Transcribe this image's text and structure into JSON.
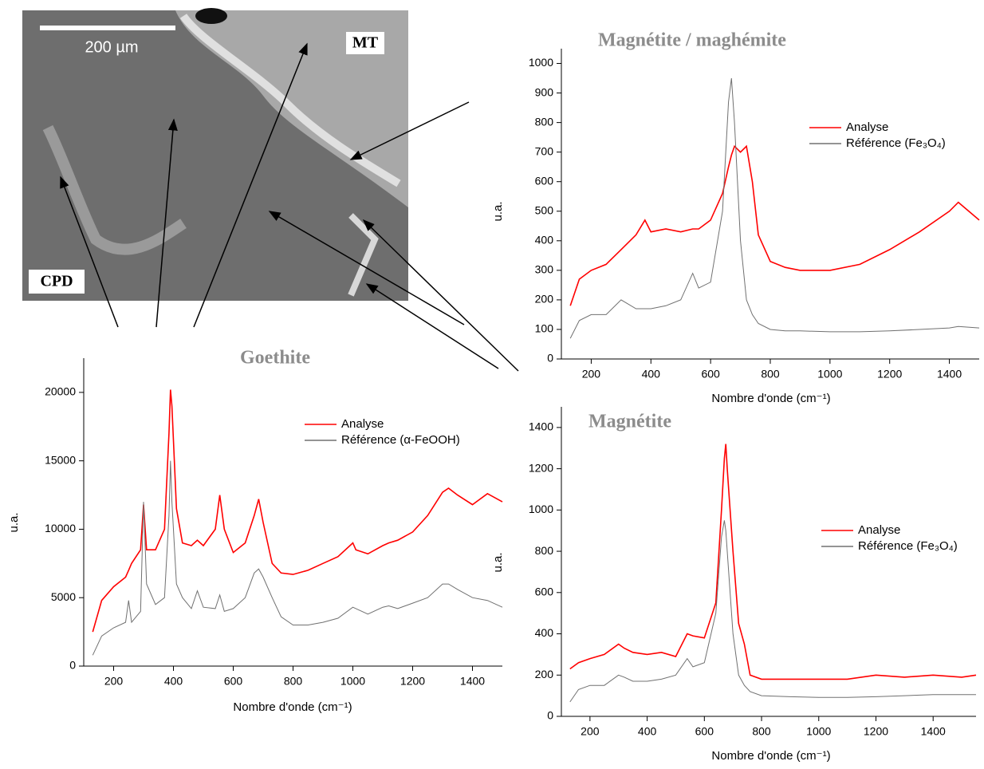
{
  "image": {
    "scale_bar": "200 µm",
    "labels": [
      "MT",
      "CPD"
    ]
  },
  "chart_data": [
    {
      "type": "line",
      "title": "Goethite",
      "xlabel": "Nombre d'onde (cm⁻¹)",
      "ylabel": "u.a.",
      "xlim": [
        100,
        1500
      ],
      "ylim": [
        0,
        22500
      ],
      "xticks": [
        200,
        400,
        600,
        800,
        1000,
        1200,
        1400
      ],
      "yticks": [
        0,
        5000,
        10000,
        15000,
        20000
      ],
      "x": [
        130,
        160,
        200,
        240,
        250,
        260,
        290,
        300,
        310,
        340,
        370,
        385,
        390,
        395,
        410,
        430,
        460,
        480,
        500,
        540,
        555,
        570,
        600,
        640,
        670,
        685,
        700,
        730,
        760,
        800,
        850,
        900,
        950,
        1000,
        1010,
        1050,
        1100,
        1120,
        1150,
        1200,
        1250,
        1300,
        1320,
        1350,
        1400,
        1450,
        1500
      ],
      "series": [
        {
          "name": "Analyse",
          "color": "#ff0000",
          "values": [
            2500,
            4800,
            5800,
            6500,
            7000,
            7500,
            8500,
            11800,
            8500,
            8500,
            10000,
            17000,
            20200,
            19000,
            11500,
            9000,
            8800,
            9200,
            8800,
            10000,
            12500,
            10000,
            8300,
            9000,
            11000,
            12200,
            10500,
            7500,
            6800,
            6700,
            7000,
            7500,
            8000,
            9000,
            8500,
            8200,
            8800,
            9000,
            9200,
            9800,
            11000,
            12700,
            13000,
            12500,
            11800,
            12600,
            12000
          ]
        },
        {
          "name": "Référence (α-FeOOH)",
          "color": "#707070",
          "values": [
            800,
            2200,
            2800,
            3200,
            4800,
            3200,
            4000,
            12000,
            6000,
            4500,
            5000,
            11000,
            15000,
            12000,
            6000,
            5000,
            4200,
            5500,
            4300,
            4200,
            5200,
            4000,
            4200,
            5000,
            6800,
            7100,
            6500,
            5000,
            3600,
            3000,
            3000,
            3200,
            3500,
            4300,
            4200,
            3800,
            4300,
            4400,
            4200,
            4600,
            5000,
            6000,
            6000,
            5600,
            5000,
            4800,
            4300
          ]
        }
      ]
    },
    {
      "type": "line",
      "title": "Magnétite / maghémite",
      "xlabel": "Nombre d'onde (cm⁻¹)",
      "ylabel": "u.a.",
      "xlim": [
        100,
        1500
      ],
      "ylim": [
        0,
        1050
      ],
      "xticks": [
        200,
        400,
        600,
        800,
        1000,
        1200,
        1400
      ],
      "yticks": [
        0,
        100,
        200,
        300,
        400,
        500,
        600,
        700,
        800,
        900,
        1000
      ],
      "x": [
        130,
        160,
        200,
        250,
        300,
        350,
        380,
        400,
        450,
        500,
        540,
        560,
        600,
        640,
        660,
        670,
        680,
        700,
        720,
        740,
        760,
        800,
        850,
        900,
        1000,
        1100,
        1200,
        1300,
        1400,
        1430,
        1500
      ],
      "series": [
        {
          "name": "Analyse",
          "color": "#ff0000",
          "values": [
            180,
            270,
            300,
            320,
            370,
            420,
            470,
            430,
            440,
            430,
            440,
            440,
            470,
            560,
            650,
            690,
            720,
            700,
            720,
            600,
            420,
            330,
            310,
            300,
            300,
            320,
            370,
            430,
            500,
            530,
            470
          ]
        },
        {
          "name": "Référence (Fe₃O₄)",
          "color": "#707070",
          "values": [
            70,
            130,
            150,
            150,
            200,
            170,
            170,
            170,
            180,
            200,
            290,
            240,
            260,
            500,
            870,
            950,
            800,
            400,
            200,
            150,
            120,
            100,
            95,
            95,
            92,
            92,
            95,
            100,
            105,
            110,
            105
          ]
        }
      ]
    },
    {
      "type": "line",
      "title": "Magnétite",
      "xlabel": "Nombre d'onde (cm⁻¹)",
      "ylabel": "u.a.",
      "xlim": [
        100,
        1550
      ],
      "ylim": [
        0,
        1500
      ],
      "xticks": [
        200,
        400,
        600,
        800,
        1000,
        1200,
        1400
      ],
      "yticks": [
        0,
        200,
        400,
        600,
        800,
        1000,
        1200,
        1400
      ],
      "x": [
        130,
        160,
        200,
        250,
        300,
        320,
        350,
        400,
        450,
        500,
        540,
        560,
        600,
        640,
        660,
        670,
        675,
        680,
        700,
        720,
        740,
        760,
        800,
        900,
        1000,
        1100,
        1200,
        1300,
        1400,
        1500,
        1550
      ],
      "series": [
        {
          "name": "Analyse",
          "color": "#ff0000",
          "values": [
            230,
            260,
            280,
            300,
            350,
            330,
            310,
            300,
            310,
            290,
            400,
            390,
            380,
            550,
            1000,
            1250,
            1320,
            1200,
            800,
            450,
            350,
            200,
            180,
            180,
            180,
            180,
            200,
            190,
            200,
            190,
            200
          ]
        },
        {
          "name": "Référence (Fe₃O₄)",
          "color": "#707070",
          "values": [
            70,
            130,
            150,
            150,
            200,
            190,
            170,
            170,
            180,
            200,
            280,
            240,
            260,
            500,
            870,
            950,
            900,
            800,
            400,
            200,
            150,
            120,
            100,
            95,
            92,
            92,
            95,
            100,
            105,
            105,
            105
          ]
        }
      ]
    }
  ]
}
